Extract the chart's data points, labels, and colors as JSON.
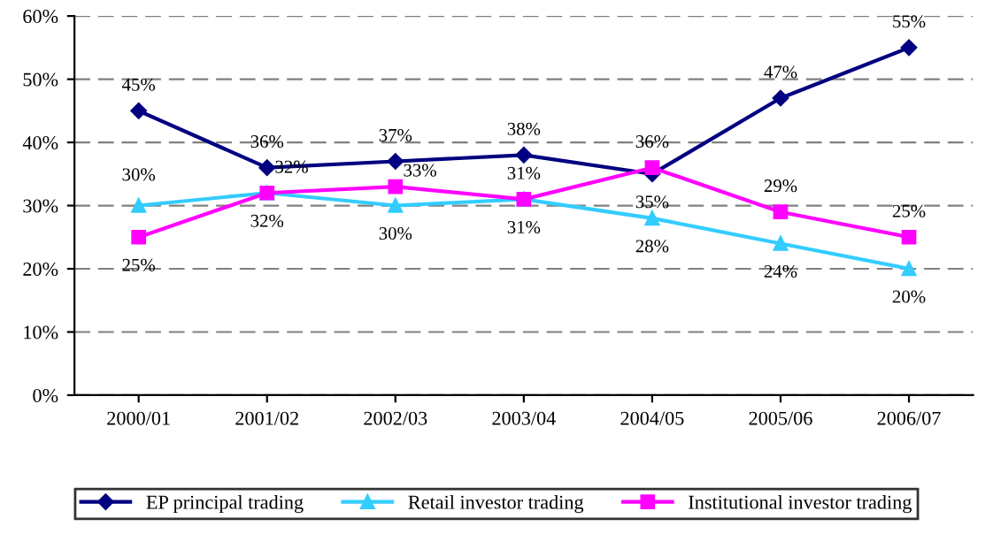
{
  "chart_data": {
    "type": "line",
    "categories": [
      "2000/01",
      "2001/02",
      "2002/03",
      "2003/04",
      "2004/05",
      "2005/06",
      "2006/07"
    ],
    "series": [
      {
        "name": "EP principal trading",
        "color": "#000080",
        "marker": "diamond",
        "values": [
          45,
          36,
          37,
          38,
          35,
          47,
          55
        ],
        "value_labels": [
          "45%",
          "36%",
          "37%",
          "38%",
          "35%",
          "47%",
          "55%"
        ]
      },
      {
        "name": "Retail investor trading",
        "color": "#33ccff",
        "marker": "triangle",
        "values": [
          30,
          32,
          30,
          31,
          28,
          24,
          20
        ],
        "value_labels": [
          "30%",
          "32%",
          "30%",
          "31%",
          "28%",
          "24%",
          "20%"
        ]
      },
      {
        "name": "Institutional investor trading",
        "color": "#ff00ff",
        "marker": "square",
        "values": [
          25,
          32,
          33,
          31,
          36,
          29,
          25
        ],
        "value_labels": [
          "25%",
          "32%",
          "33%",
          "31%",
          "36%",
          "29%",
          "25%"
        ]
      }
    ],
    "ylim": [
      0,
      60
    ],
    "yticks": [
      {
        "value": 0,
        "label": "0%"
      },
      {
        "value": 10,
        "label": "10%"
      },
      {
        "value": 20,
        "label": "20%"
      },
      {
        "value": 30,
        "label": "30%"
      },
      {
        "value": 40,
        "label": "40%"
      },
      {
        "value": 50,
        "label": "50%"
      },
      {
        "value": 60,
        "label": "60%"
      }
    ],
    "grid": "y",
    "legend": "bottom",
    "line_style": "solid"
  }
}
